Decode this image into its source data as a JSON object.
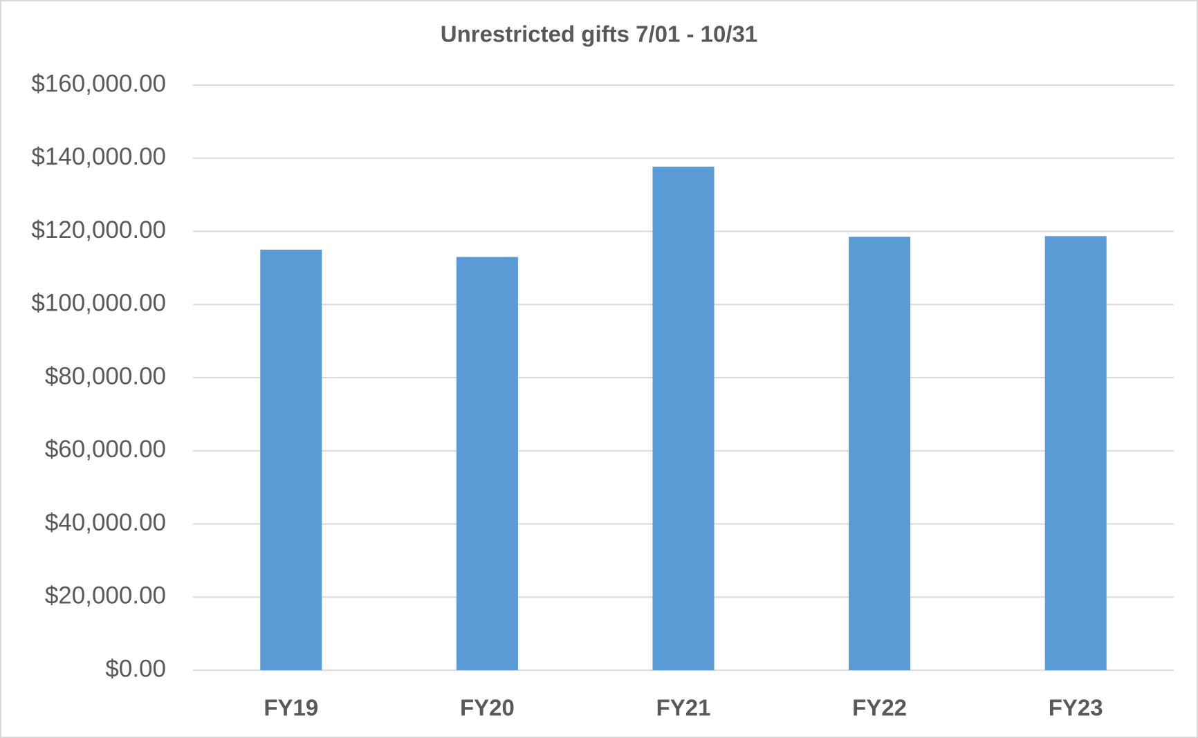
{
  "chart_data": {
    "type": "bar",
    "title": "Unrestricted gifts 7/01 - 10/31",
    "categories": [
      "FY19",
      "FY20",
      "FY21",
      "FY22",
      "FY23"
    ],
    "values": [
      115000,
      113000,
      137700,
      118500,
      118700
    ],
    "color": "#5b9bd5",
    "ylim": [
      0,
      160000
    ],
    "yticks": [
      {
        "value": 0,
        "label": "$0.00"
      },
      {
        "value": 20000,
        "label": "$20,000.00"
      },
      {
        "value": 40000,
        "label": "$40,000.00"
      },
      {
        "value": 60000,
        "label": "$60,000.00"
      },
      {
        "value": 80000,
        "label": "$80,000.00"
      },
      {
        "value": 100000,
        "label": "$100,000.00"
      },
      {
        "value": 120000,
        "label": "$120,000.00"
      },
      {
        "value": 140000,
        "label": "$140,000.00"
      },
      {
        "value": 160000,
        "label": "$160,000.00"
      }
    ],
    "grid": true
  }
}
